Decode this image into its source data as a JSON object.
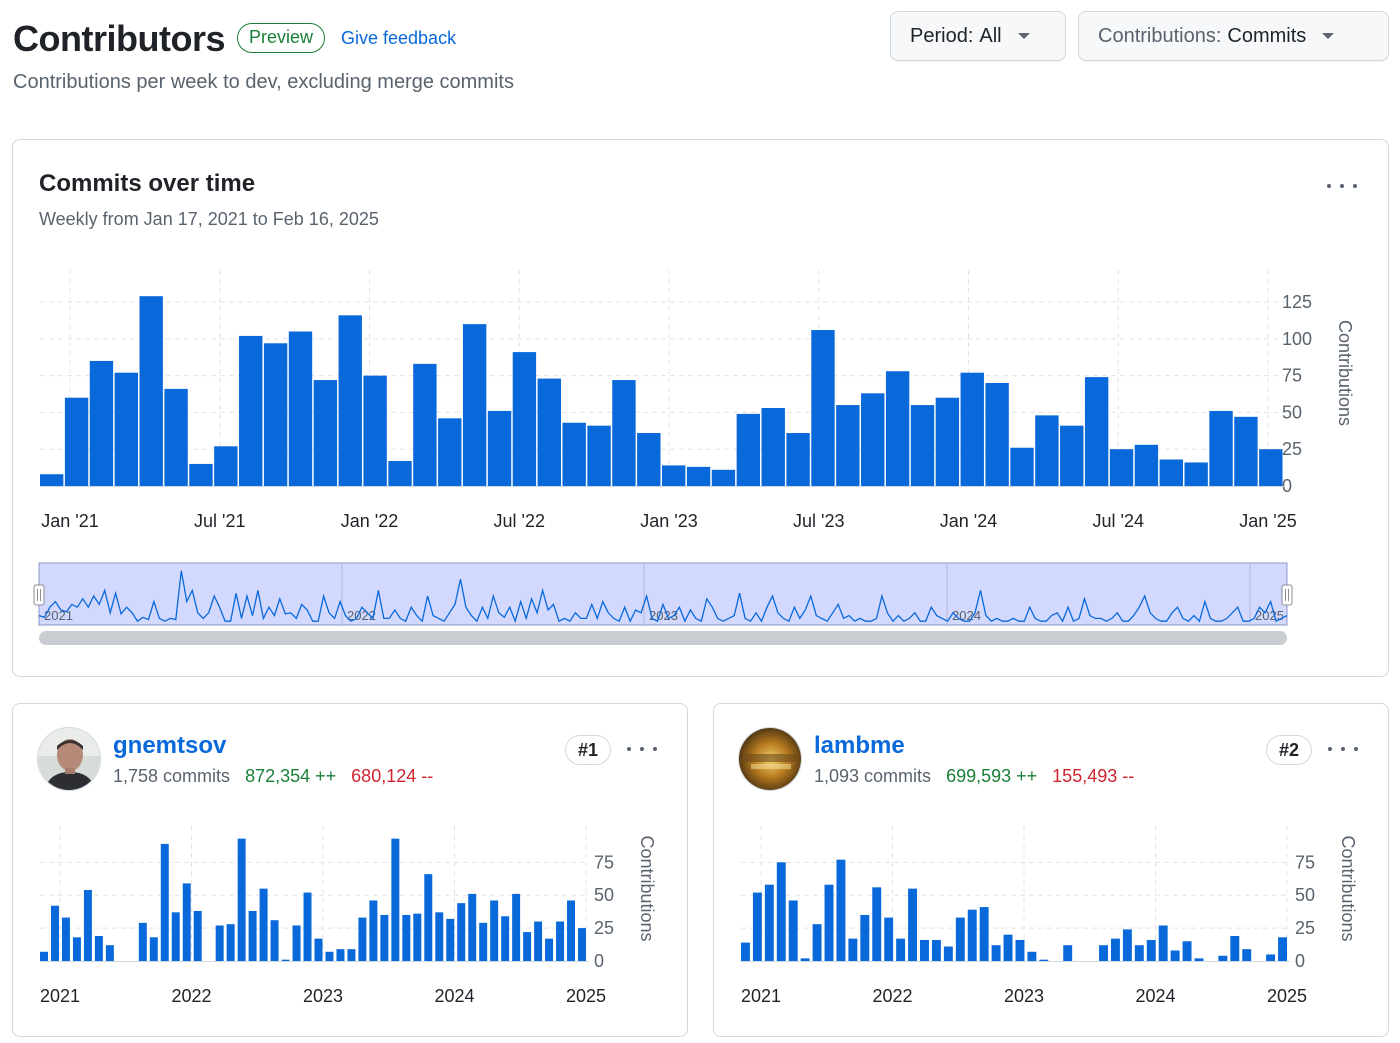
{
  "header": {
    "title": "Contributors",
    "badge": "Preview",
    "feedback_link": "Give feedback",
    "subtitle": "Contributions per week to dev, excluding merge commits"
  },
  "filters": {
    "period_label": "Period:",
    "period_value": "All",
    "contributions_label": "Contributions:",
    "contributions_value": "Commits"
  },
  "main_chart": {
    "title": "Commits over time",
    "subtitle": "Weekly from Jan 17, 2021 to Feb 16, 2025"
  },
  "colors": {
    "bar": "#0969da",
    "additions": "#1a7f37",
    "deletions": "#d1242f",
    "brush_fill": "#d3d8ff",
    "brush_line": "#0969da"
  },
  "chart_data": [
    {
      "type": "bar",
      "id": "commits-over-time",
      "title": "Commits over time",
      "ylabel": "Contributions",
      "ylim": [
        0,
        140
      ],
      "yticks": [
        0,
        25,
        50,
        75,
        100,
        125
      ],
      "xtick_labels": [
        "Jan '21",
        "Jul '21",
        "Jan '22",
        "Jul '22",
        "Jan '23",
        "Jul '23",
        "Jan '24",
        "Jul '24",
        "Jan '25"
      ],
      "grid": true,
      "values": [
        8,
        60,
        85,
        77,
        129,
        66,
        15,
        27,
        102,
        97,
        105,
        72,
        116,
        75,
        17,
        83,
        46,
        110,
        51,
        91,
        73,
        43,
        41,
        72,
        36,
        14,
        13,
        11,
        49,
        53,
        36,
        106,
        55,
        63,
        78,
        55,
        60,
        77,
        70,
        26,
        48,
        41,
        74,
        25,
        28,
        18,
        16,
        51,
        47,
        25
      ]
    },
    {
      "type": "line",
      "id": "overview-brush",
      "xtick_labels": [
        "2021",
        "2022",
        "2023",
        "2024",
        "2025"
      ],
      "values": [
        0.15,
        0.12,
        0.3,
        0.4,
        0.25,
        0.22,
        0.35,
        0.3,
        0.45,
        0.3,
        0.5,
        0.35,
        0.6,
        0.2,
        0.55,
        0.18,
        0.3,
        0.2,
        0.05,
        0.12,
        0.08,
        0.4,
        0.1,
        0.05,
        0.1,
        0.08,
        0.95,
        0.4,
        0.6,
        0.2,
        0.1,
        0.2,
        0.5,
        0.3,
        0.05,
        0.05,
        0.55,
        0.1,
        0.5,
        0.15,
        0.6,
        0.1,
        0.3,
        0.15,
        0.45,
        0.18,
        0.2,
        0.1,
        0.35,
        0.25,
        0.05,
        0.05,
        0.5,
        0.2,
        0.1,
        0.4,
        0.15,
        0.05,
        0.1,
        0.3,
        0.2,
        0.1,
        0.6,
        0.1,
        0.1,
        0.25,
        0.1,
        0.05,
        0.3,
        0.15,
        0.05,
        0.5,
        0.15,
        0.1,
        0.05,
        0.2,
        0.35,
        0.8,
        0.3,
        0.15,
        0.05,
        0.3,
        0.1,
        0.5,
        0.2,
        0.12,
        0.3,
        0.05,
        0.4,
        0.1,
        0.45,
        0.2,
        0.6,
        0.25,
        0.35,
        0.05,
        0.1,
        0.05,
        0.2,
        0.1,
        0.1,
        0.35,
        0.1,
        0.4,
        0.2,
        0.1,
        0.05,
        0.3,
        0.05,
        0.25,
        0.2,
        0.5,
        0.1,
        0.05,
        0.35,
        0.1,
        0.15,
        0.3,
        0.05,
        0.25,
        0.1,
        0.05,
        0.45,
        0.3,
        0.1,
        0.05,
        0.1,
        0.15,
        0.55,
        0.1,
        0.05,
        0.2,
        0.05,
        0.3,
        0.5,
        0.2,
        0.1,
        0.05,
        0.3,
        0.1,
        0.25,
        0.5,
        0.15,
        0.1,
        0.05,
        0.2,
        0.35,
        0.1,
        0.15,
        0.05,
        0.1,
        0.05,
        0.05,
        0.1,
        0.5,
        0.2,
        0.05,
        0.15,
        0.05,
        0.1,
        0.2,
        0.05,
        0.05,
        0.3,
        0.15,
        0.1,
        0.05,
        0.2,
        0.1,
        0.05,
        0.05,
        0.2,
        0.6,
        0.15,
        0.05,
        0.1,
        0.05,
        0.05,
        0.1,
        0.05,
        0.05,
        0.3,
        0.1,
        0.05,
        0.05,
        0.15,
        0.2,
        0.05,
        0.3,
        0.05,
        0.1,
        0.45,
        0.15,
        0.1,
        0.1,
        0.05,
        0.1,
        0.2,
        0.05,
        0.05,
        0.15,
        0.3,
        0.5,
        0.2,
        0.1,
        0.05,
        0.05,
        0.2,
        0.3,
        0.1,
        0.05,
        0.15,
        0.05,
        0.4,
        0.1,
        0.05,
        0.05,
        0.1,
        0.2,
        0.3,
        0.05,
        0.05,
        0.1,
        0.3,
        0.2,
        0.4,
        0.05,
        0.1,
        0.15
      ]
    },
    {
      "type": "bar",
      "id": "contributor-1-chart",
      "ylabel": "Contributions",
      "ylim": [
        0,
        95
      ],
      "yticks": [
        0,
        25,
        50,
        75
      ],
      "xtick_labels": [
        "2021",
        "2022",
        "2023",
        "2024",
        "2025"
      ],
      "grid": true,
      "values": [
        7,
        42,
        33,
        18,
        54,
        19,
        12,
        0,
        0,
        29,
        18,
        89,
        37,
        59,
        38,
        0,
        27,
        28,
        93,
        38,
        55,
        31,
        1,
        27,
        52,
        17,
        7,
        9,
        9,
        33,
        46,
        35,
        93,
        35,
        36,
        66,
        37,
        32,
        44,
        51,
        29,
        46,
        34,
        51,
        22,
        30,
        17,
        30,
        46,
        25
      ]
    },
    {
      "type": "bar",
      "id": "contributor-2-chart",
      "ylabel": "Contributions",
      "ylim": [
        0,
        95
      ],
      "yticks": [
        0,
        25,
        50,
        75
      ],
      "xtick_labels": [
        "2021",
        "2022",
        "2023",
        "2024",
        "2025"
      ],
      "grid": true,
      "values": [
        14,
        52,
        58,
        75,
        46,
        2,
        28,
        58,
        77,
        17,
        35,
        56,
        33,
        17,
        55,
        16,
        16,
        11,
        33,
        39,
        41,
        12,
        20,
        16,
        7,
        1,
        0,
        12,
        0,
        0,
        12,
        17,
        24,
        12,
        16,
        27,
        8,
        15,
        2,
        0,
        4,
        19,
        9,
        0,
        5,
        18
      ]
    }
  ],
  "contributors": [
    {
      "username": "gnemtsov",
      "commits": "1,758 commits",
      "additions": "872,354 ++",
      "deletions": "680,124 --",
      "rank": "#1"
    },
    {
      "username": "lambme",
      "commits": "1,093 commits",
      "additions": "699,593 ++",
      "deletions": "155,493 --",
      "rank": "#2"
    }
  ]
}
